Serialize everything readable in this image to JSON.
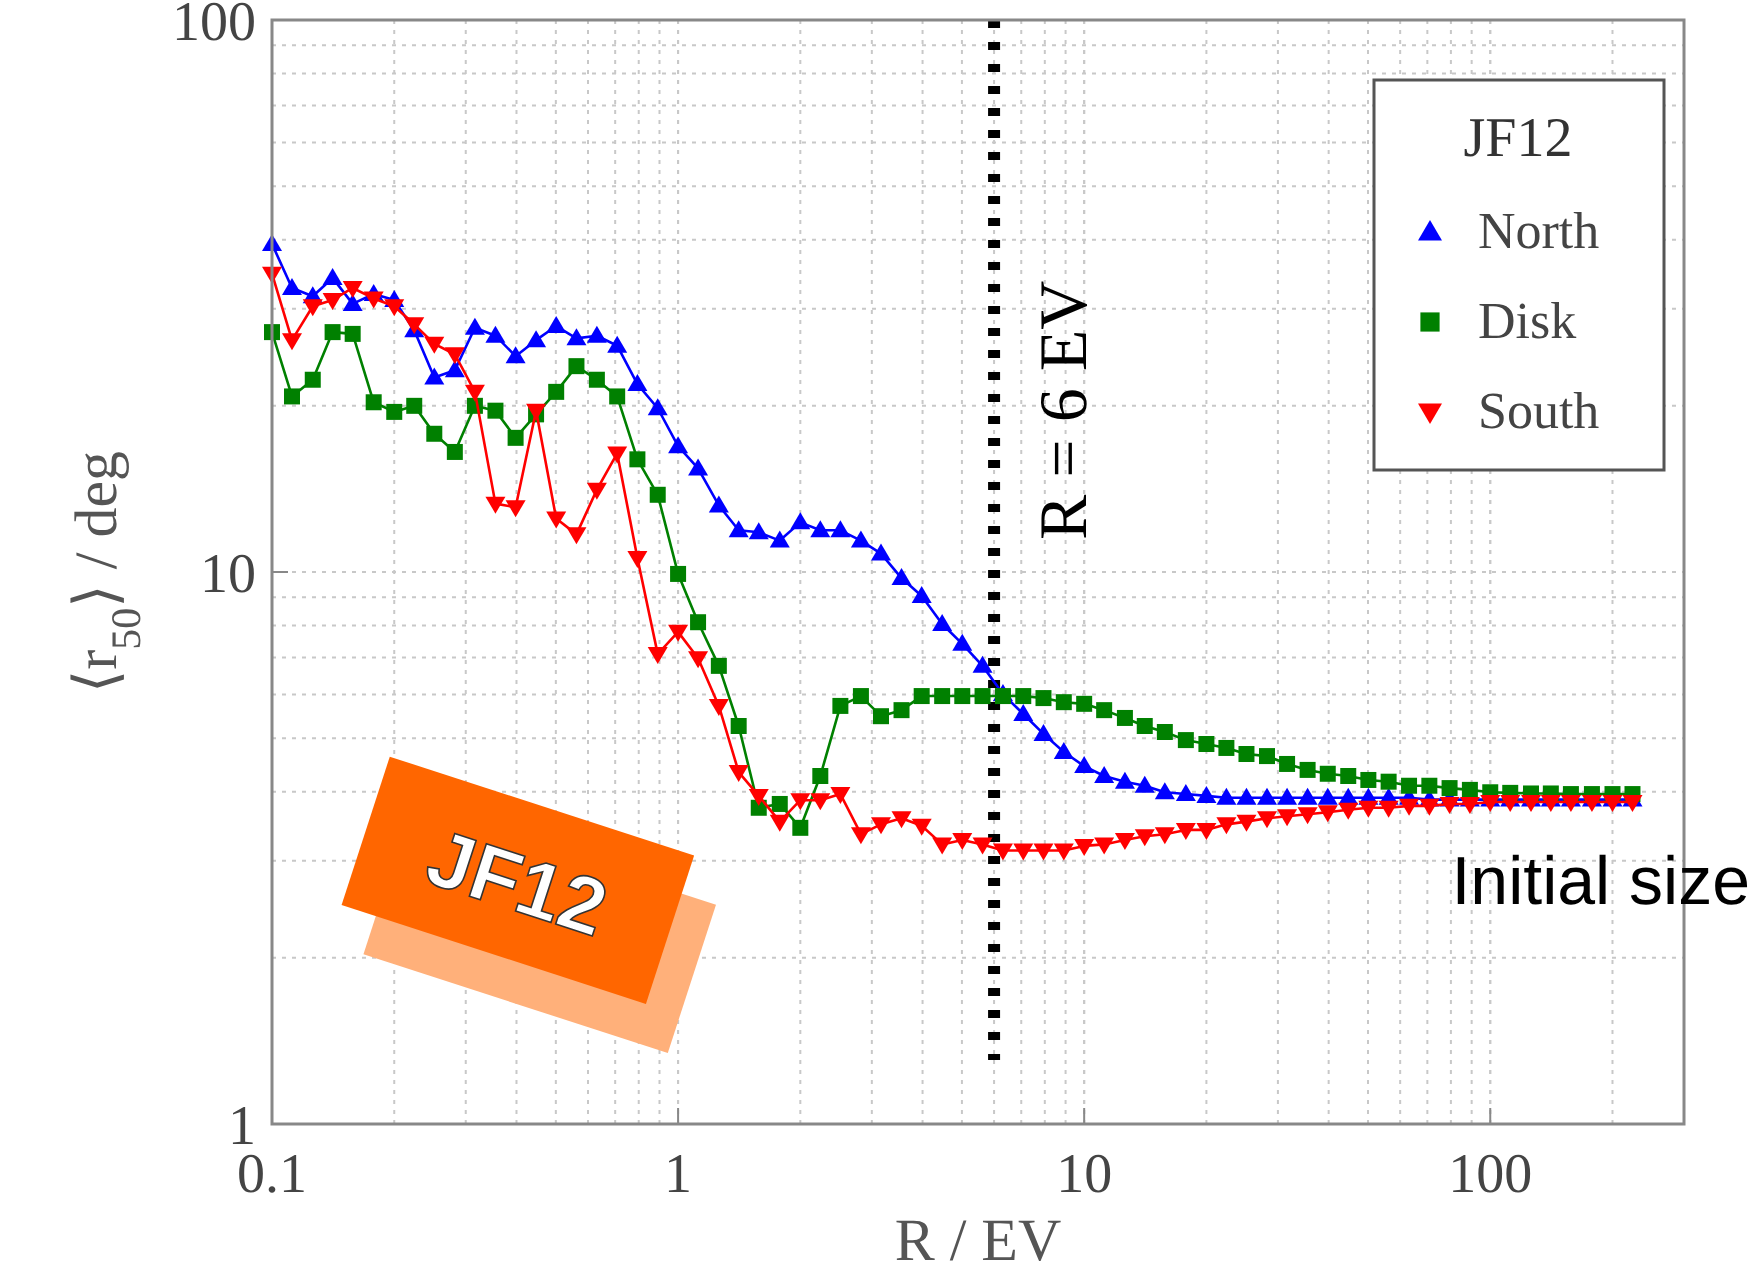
{
  "chart_data": {
    "type": "line",
    "xlabel": "R / EV",
    "ylabel": "⟨r$_{50}$⟩ / deg",
    "legend_title": "JF12",
    "log": "xy",
    "grid": true,
    "legend": "top right",
    "xlim": [
      0.1,
      300
    ],
    "ylim": [
      1,
      100
    ],
    "xticks": [
      0.1,
      1,
      10,
      100
    ],
    "yticks": [
      1,
      10,
      100
    ],
    "x": [
      0.1,
      0.112,
      0.126,
      0.141,
      0.158,
      0.178,
      0.2,
      0.224,
      0.251,
      0.282,
      0.316,
      0.355,
      0.398,
      0.447,
      0.501,
      0.562,
      0.631,
      0.708,
      0.794,
      0.891,
      1,
      1.12,
      1.26,
      1.41,
      1.58,
      1.78,
      2,
      2.24,
      2.51,
      2.82,
      3.16,
      3.55,
      3.98,
      4.47,
      5.01,
      5.62,
      6.31,
      7.08,
      7.94,
      8.91,
      10,
      11.2,
      12.6,
      14.1,
      15.8,
      17.8,
      20,
      22.4,
      25.1,
      28.2,
      31.6,
      35.5,
      39.8,
      44.7,
      50.1,
      56.2,
      63.1,
      70.8,
      79.4,
      89.1,
      100,
      112,
      126,
      141,
      158,
      178,
      200,
      224
    ],
    "series": [
      {
        "name": "North",
        "color": "#0000ff",
        "marker": "triangle",
        "values": [
          39.3,
          32.7,
          31.6,
          34.1,
          30.6,
          31.9,
          31.1,
          27.4,
          22.5,
          23.2,
          27.7,
          26.8,
          24.6,
          26.3,
          27.9,
          26.5,
          26.8,
          25.7,
          21.9,
          19.8,
          16.9,
          15.4,
          13.2,
          11.9,
          11.8,
          11.4,
          12.3,
          11.9,
          11.9,
          11.4,
          10.8,
          9.75,
          9.05,
          8.05,
          7.41,
          6.76,
          6.01,
          5.53,
          5.09,
          4.72,
          4.45,
          4.27,
          4.17,
          4.1,
          3.99,
          3.96,
          3.93,
          3.9,
          3.9,
          3.9,
          3.9,
          3.9,
          3.9,
          3.9,
          3.9,
          3.9,
          3.9,
          3.87,
          3.87,
          3.87,
          3.87,
          3.87,
          3.87,
          3.87,
          3.87,
          3.87,
          3.87,
          3.87
        ]
      },
      {
        "name": "Disk",
        "color": "#008000",
        "marker": "square",
        "values": [
          27.2,
          20.8,
          22.3,
          27.2,
          27,
          20.3,
          19.5,
          20,
          17.8,
          16.5,
          20,
          19.6,
          17.5,
          19.3,
          21.2,
          23.6,
          22.3,
          20.8,
          16,
          13.8,
          9.92,
          8.11,
          6.76,
          5.26,
          3.74,
          3.8,
          3.44,
          4.27,
          5.72,
          5.96,
          5.48,
          5.62,
          5.96,
          5.96,
          5.96,
          5.96,
          5.96,
          5.96,
          5.91,
          5.81,
          5.77,
          5.62,
          5.44,
          5.26,
          5.13,
          4.96,
          4.88,
          4.8,
          4.68,
          4.64,
          4.49,
          4.38,
          4.31,
          4.27,
          4.2,
          4.17,
          4.1,
          4.1,
          4.06,
          4.03,
          3.99,
          3.98,
          3.97,
          3.97,
          3.96,
          3.96,
          3.96,
          3.96
        ]
      },
      {
        "name": "South",
        "color": "#ff0000",
        "marker": "triangle-down",
        "values": [
          34.7,
          26.3,
          30.3,
          31.1,
          32.7,
          31.3,
          30.3,
          28.1,
          25.9,
          24.8,
          21.2,
          13.3,
          13.1,
          19.6,
          12.5,
          11.7,
          14.1,
          16.4,
          10.6,
          7.1,
          7.79,
          6.98,
          5.72,
          4.34,
          3.93,
          3.53,
          3.86,
          3.86,
          3.96,
          3.35,
          3.49,
          3.58,
          3.47,
          3.21,
          3.27,
          3.21,
          3.13,
          3.13,
          3.13,
          3.13,
          3.19,
          3.21,
          3.27,
          3.32,
          3.35,
          3.41,
          3.41,
          3.49,
          3.53,
          3.58,
          3.61,
          3.64,
          3.67,
          3.71,
          3.74,
          3.74,
          3.77,
          3.77,
          3.8,
          3.8,
          3.83,
          3.83,
          3.83,
          3.83,
          3.83,
          3.83,
          3.83,
          3.83
        ]
      }
    ],
    "ref_lines": [
      {
        "axis": "x",
        "value": 6,
        "label": "R = 6 EV",
        "color": "#000000",
        "line_style": "dotted"
      }
    ],
    "annotations": [
      "Initial size",
      "JF12"
    ]
  }
}
